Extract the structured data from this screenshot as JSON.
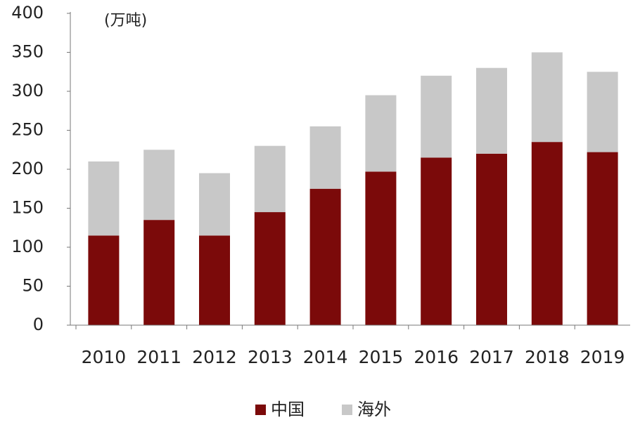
{
  "chart_data": {
    "type": "stacked-bar",
    "unit_label": "(万吨)",
    "categories": [
      "2010",
      "2011",
      "2012",
      "2013",
      "2014",
      "2015",
      "2016",
      "2017",
      "2018",
      "2019"
    ],
    "series": [
      {
        "name": "中国",
        "color": "#7b0a0a",
        "values": [
          115,
          135,
          115,
          145,
          175,
          197,
          215,
          220,
          235,
          222
        ]
      },
      {
        "name": "海外",
        "color": "#c8c8c8",
        "values": [
          95,
          90,
          80,
          85,
          80,
          98,
          105,
          110,
          115,
          103
        ]
      }
    ],
    "ylim": [
      0,
      400
    ],
    "yticks": [
      0,
      50,
      100,
      150,
      200,
      250,
      300,
      350,
      400
    ],
    "grid": false,
    "legend": "bottom"
  }
}
